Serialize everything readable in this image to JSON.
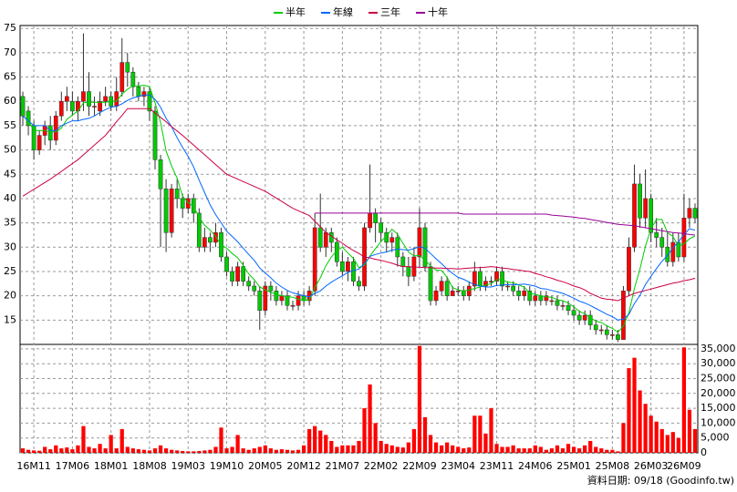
{
  "chart_data": {
    "type": "candlestick",
    "footer": "資料日期: 09/18 (Goodinfo.tw)",
    "legend": "top",
    "grid": true,
    "up_color": "#ff0000",
    "down_color": "#00cc00",
    "volume_color": "#ff0000",
    "ylim": [
      10,
      75.6
    ],
    "yticks": [
      15,
      20,
      25,
      30,
      35,
      40,
      45,
      50,
      55,
      60,
      65,
      70,
      75
    ],
    "y2lim": [
      0,
      36500
    ],
    "y2ticks": [
      0,
      {
        "value": 5000,
        "label": "5,000"
      },
      {
        "value": 10000,
        "label": "10,000"
      },
      {
        "value": 15000,
        "label": "15,000"
      },
      {
        "value": 20000,
        "label": "20,000"
      },
      {
        "value": 25000,
        "label": "25,000"
      },
      {
        "value": 30000,
        "label": "30,000"
      },
      {
        "value": 35000,
        "label": "35,000"
      }
    ],
    "categories": [
      null,
      null,
      "16M11",
      null,
      null,
      null,
      null,
      null,
      null,
      "17M06",
      null,
      null,
      null,
      null,
      null,
      null,
      "18M01",
      null,
      null,
      null,
      null,
      null,
      null,
      "18M08",
      null,
      null,
      null,
      null,
      null,
      null,
      "19M03",
      null,
      null,
      null,
      null,
      null,
      null,
      "19M10",
      null,
      null,
      null,
      null,
      null,
      null,
      "20M05",
      null,
      null,
      null,
      null,
      null,
      null,
      "20M12",
      null,
      null,
      null,
      null,
      null,
      null,
      "21M07",
      null,
      null,
      null,
      null,
      null,
      null,
      "22M02",
      null,
      null,
      null,
      null,
      null,
      null,
      "22M09",
      null,
      null,
      null,
      null,
      null,
      null,
      "23M04",
      null,
      null,
      null,
      null,
      null,
      null,
      "23M11",
      null,
      null,
      null,
      null,
      null,
      null,
      "24M06",
      null,
      null,
      null,
      null,
      null,
      null,
      "25M01",
      null,
      null,
      null,
      null,
      null,
      null,
      "25M08",
      null,
      null,
      null,
      null,
      null,
      null,
      "26M03",
      null,
      null,
      null,
      null,
      null,
      "26M09",
      null,
      null
    ],
    "open": [
      61,
      58,
      55,
      50,
      53,
      55,
      52,
      57,
      60,
      60,
      58,
      60,
      62,
      59,
      58,
      60,
      61,
      59,
      62,
      68,
      66,
      63,
      61,
      62,
      58,
      48,
      42,
      33,
      42,
      40,
      38,
      40,
      37,
      30,
      32,
      31,
      33,
      28,
      25,
      23,
      26,
      23,
      22,
      21,
      17,
      22,
      21,
      19,
      20,
      18,
      18,
      20,
      19,
      21,
      34,
      30,
      33,
      31,
      27,
      25,
      27,
      23,
      22,
      34,
      37,
      35,
      33,
      31,
      32,
      28,
      26,
      24,
      28,
      34,
      26,
      19,
      21,
      23,
      20,
      21,
      21,
      20,
      22,
      25,
      22,
      23,
      23,
      25,
      22,
      22,
      21,
      20,
      21,
      19,
      20,
      19,
      19,
      19,
      18,
      18,
      17,
      16,
      15,
      16,
      14,
      13,
      13,
      12,
      12,
      11,
      21,
      30,
      43,
      36,
      40,
      33,
      32,
      30,
      27,
      31,
      28,
      36,
      38
    ],
    "high": [
      62,
      59,
      56,
      54,
      56,
      57,
      58,
      62,
      63,
      62,
      61,
      74,
      66,
      61,
      62,
      63,
      62,
      65,
      73,
      70,
      67,
      64,
      63,
      63,
      59,
      49,
      44,
      43,
      44,
      41,
      41,
      41,
      38,
      34,
      33,
      35,
      34,
      29,
      26,
      27,
      27,
      24,
      23,
      22,
      23,
      23,
      22,
      21,
      21,
      19,
      21,
      21,
      22,
      37,
      41,
      34,
      34,
      32,
      29,
      28,
      28,
      24,
      35,
      47,
      38,
      36,
      34,
      33,
      33,
      29,
      28,
      30,
      38,
      35,
      27,
      22,
      24,
      24,
      22,
      22,
      22,
      23,
      27,
      26,
      24,
      24,
      26,
      26,
      23,
      23,
      22,
      22,
      22,
      21,
      21,
      21,
      20,
      20,
      19,
      19,
      18,
      17,
      17,
      17,
      15,
      14,
      14,
      13,
      13,
      22,
      32,
      47,
      45,
      46,
      41,
      36,
      34,
      33,
      33,
      33,
      41,
      40,
      39
    ],
    "low": [
      55,
      53,
      48,
      49,
      51,
      50,
      51,
      56,
      58,
      57,
      56,
      58,
      57,
      57,
      57,
      59,
      58,
      58,
      61,
      63,
      61,
      60,
      59,
      56,
      46,
      30,
      29,
      32,
      38,
      36,
      37,
      35,
      29,
      29,
      29,
      30,
      27,
      24,
      22,
      22,
      22,
      21,
      20,
      13,
      16,
      19,
      18,
      18,
      17,
      17,
      17,
      18,
      18,
      20,
      29,
      28,
      29,
      26,
      24,
      23,
      22,
      21,
      21,
      33,
      31,
      31,
      29,
      29,
      26,
      24,
      22,
      23,
      26,
      25,
      18,
      18,
      20,
      19,
      20,
      20,
      19,
      19,
      21,
      21,
      21,
      22,
      22,
      21,
      21,
      20,
      19,
      19,
      18,
      18,
      18,
      18,
      18,
      17,
      17,
      16,
      15,
      14,
      14,
      13,
      12,
      12,
      11,
      11,
      10.5,
      11,
      20,
      29,
      34,
      34,
      31,
      30,
      28,
      26,
      26,
      27,
      27,
      34,
      35
    ],
    "close": [
      57,
      55,
      50,
      53,
      55,
      52,
      57,
      60,
      61,
      58,
      60,
      62,
      59,
      59,
      60,
      61,
      59,
      62,
      68,
      66,
      63,
      61,
      62,
      58,
      48,
      42,
      33,
      42,
      40,
      38,
      40,
      37,
      30,
      32,
      31,
      33,
      28,
      25,
      23,
      26,
      23,
      22,
      21,
      17,
      22,
      21,
      19,
      20,
      18,
      18,
      20,
      19,
      21,
      34,
      30,
      33,
      31,
      27,
      25,
      27,
      23,
      22,
      34,
      37,
      35,
      33,
      31,
      32,
      28,
      26,
      24,
      28,
      34,
      26,
      19,
      21,
      23,
      20,
      21,
      21,
      20,
      22,
      25,
      22,
      23,
      23,
      25,
      22,
      22,
      21,
      20,
      21,
      19,
      20,
      19,
      20,
      19,
      18,
      18,
      17,
      16,
      15,
      16,
      14,
      13,
      13,
      12,
      12,
      11,
      21,
      30,
      43,
      36,
      40,
      33,
      32,
      30,
      27,
      31,
      28,
      36,
      38,
      36
    ],
    "volume": [
      1500,
      1000,
      800,
      700,
      2000,
      1200,
      2500,
      1500,
      1800,
      1200,
      2500,
      9000,
      2000,
      1500,
      3000,
      1500,
      6000,
      1500,
      8000,
      2000,
      1500,
      1200,
      1000,
      800,
      1500,
      2500,
      1500,
      1000,
      800,
      600,
      500,
      500,
      600,
      800,
      1000,
      2000,
      8500,
      1500,
      2000,
      6000,
      1500,
      1000,
      1500,
      2000,
      2500,
      1500,
      1000,
      1200,
      1000,
      800,
      1000,
      2500,
      8000,
      9000,
      7500,
      6000,
      4000,
      2000,
      2500,
      2500,
      2500,
      4000,
      15000,
      23000,
      10000,
      4000,
      3000,
      2500,
      2000,
      1800,
      3500,
      8000,
      36000,
      12000,
      6000,
      3500,
      2500,
      3500,
      2500,
      2000,
      1500,
      1800,
      12500,
      12500,
      6500,
      15000,
      3000,
      2000,
      2000,
      2500,
      1500,
      1500,
      1500,
      2500,
      2000,
      1000,
      1500,
      2500,
      1500,
      3000,
      2000,
      1500,
      2500,
      4000,
      2000,
      1500,
      1000,
      1000,
      500,
      10000,
      28500,
      32000,
      21000,
      16500,
      12500,
      10500,
      8000,
      6000,
      7000,
      5000,
      35500,
      14500,
      8000
    ],
    "series": [
      {
        "name": "半年",
        "color": "#00cc00",
        "values": [
          57,
          56,
          54,
          54,
          54,
          53.7,
          53.7,
          54.5,
          56.3,
          57.2,
          58,
          59.7,
          59.8,
          59.8,
          59.8,
          59.8,
          60,
          60,
          61.5,
          62.5,
          63.2,
          63.2,
          63.3,
          63,
          59.7,
          55.7,
          49.8,
          46.7,
          44.2,
          40.5,
          39.2,
          38.3,
          36.2,
          34.5,
          33.5,
          32.2,
          30.5,
          29.8,
          28.7,
          27.8,
          26.3,
          24.5,
          23.3,
          21.8,
          21.2,
          20.7,
          20.3,
          20,
          19.8,
          19.7,
          19.3,
          19,
          19.2,
          21.7,
          23.7,
          26.2,
          28,
          29.3,
          30,
          28.8,
          27.7,
          25.8,
          26.3,
          28.2,
          29.7,
          31.2,
          32.3,
          33.7,
          32.7,
          30.8,
          29,
          28.2,
          28.3,
          27.3,
          26.2,
          25.3,
          25.2,
          23.8,
          21.7,
          21.2,
          21,
          21.2,
          21.5,
          21.8,
          22.2,
          22.5,
          23.3,
          23.3,
          22.8,
          22.7,
          22.2,
          21.8,
          20.5,
          20.3,
          20,
          19.8,
          19.7,
          19.2,
          19,
          18.5,
          17.7,
          16.8,
          16.3,
          15.5,
          14.8,
          14.5,
          13.8,
          13.3,
          12.5,
          13.8,
          16.5,
          21.5,
          25.5,
          30.2,
          33.8,
          35.7,
          35.7,
          33,
          32.2,
          30.2,
          30.7,
          31.7,
          32.3
        ]
      },
      {
        "name": "年線",
        "color": "#0066ff",
        "values": [
          57,
          56,
          55,
          55,
          55,
          54,
          54,
          55,
          55.5,
          56,
          56,
          56.3,
          56.5,
          57,
          57.7,
          58.3,
          58.8,
          59,
          59.5,
          60.2,
          60.7,
          61,
          61.3,
          61.3,
          60.4,
          58.8,
          56.5,
          54.8,
          52.5,
          50.5,
          48.7,
          46.5,
          43.8,
          41.2,
          38.7,
          36.7,
          35,
          33.3,
          32.2,
          31.1,
          29.8,
          28.5,
          27.3,
          25.7,
          24.7,
          23.7,
          22.6,
          21.8,
          21.1,
          20.6,
          20.3,
          20,
          19.8,
          20.5,
          21,
          22,
          22.8,
          23.5,
          24.1,
          24.8,
          25.2,
          25.5,
          26.6,
          28.1,
          28.5,
          28.8,
          29,
          29.4,
          29.6,
          29.5,
          29.4,
          29.7,
          30.1,
          29.8,
          28.7,
          27.6,
          26.6,
          25.5,
          24.6,
          23.8,
          23.4,
          22.8,
          22.3,
          22,
          21.8,
          21.8,
          22.1,
          22.2,
          22.3,
          22.3,
          22.3,
          22.4,
          22.2,
          22,
          21.5,
          21.4,
          21.1,
          20.8,
          20.5,
          20,
          19.5,
          18.9,
          18.5,
          18,
          17.4,
          16.8,
          16.2,
          15.7,
          15,
          15.2,
          16.2,
          18.4,
          20.1,
          22.3,
          24,
          25.6,
          27.1,
          28.3,
          29.9,
          31.1,
          32.6,
          33.8,
          33.5
        ]
      },
      {
        "name": "三年",
        "color": "#cc0044",
        "values": [
          40.5,
          41.2,
          41.9,
          42.6,
          43.3,
          44,
          44.8,
          45.6,
          46.4,
          47.2,
          48,
          49,
          50,
          51,
          52,
          53,
          54.4,
          55.8,
          57.1,
          58.5,
          58.5,
          58.5,
          58.5,
          58.5,
          57.6,
          56.7,
          55.8,
          54.8,
          53.9,
          53,
          52,
          51,
          50,
          49,
          48,
          47,
          46,
          45,
          44.5,
          44,
          43.5,
          43,
          42.5,
          42,
          41.5,
          40.8,
          40.1,
          39.4,
          38.7,
          38,
          37.5,
          37,
          36.5,
          35.3,
          34.2,
          33,
          32.3,
          31.5,
          30.8,
          30,
          29.3,
          28.7,
          28,
          27.8,
          27.5,
          27.3,
          27,
          26.7,
          26.3,
          26,
          26,
          25.9,
          25.9,
          25.8,
          25.8,
          25.7,
          25.7,
          25.6,
          25.6,
          25.5,
          25.6,
          25.7,
          25.8,
          25.8,
          25.9,
          26,
          25.9,
          25.7,
          25.6,
          25.4,
          25.3,
          25.1,
          25,
          24.6,
          24.3,
          23.9,
          23.6,
          23.2,
          22.9,
          22.5,
          22,
          21.7,
          21.2,
          20.5,
          20,
          19.5,
          19.3,
          19.2,
          19,
          19.5,
          20,
          20.5,
          20.8,
          21.1,
          21.4,
          21.7,
          22,
          22.3,
          22.6,
          22.8,
          23.1,
          23.3,
          23.6
        ]
      },
      {
        "name": "十年",
        "color": "#990099",
        "values": [
          null,
          null,
          null,
          null,
          null,
          null,
          null,
          null,
          null,
          null,
          null,
          null,
          null,
          null,
          null,
          null,
          null,
          null,
          null,
          null,
          null,
          null,
          null,
          null,
          null,
          null,
          null,
          null,
          null,
          null,
          null,
          null,
          null,
          null,
          null,
          null,
          null,
          null,
          null,
          null,
          null,
          null,
          null,
          null,
          null,
          null,
          null,
          null,
          null,
          null,
          null,
          null,
          null,
          37,
          37,
          37,
          37,
          37,
          37,
          37,
          37,
          37,
          37,
          37,
          37,
          37,
          37,
          37,
          37,
          37,
          37,
          37,
          37,
          37,
          37,
          37,
          37,
          37,
          37,
          37,
          36.8,
          36.8,
          36.8,
          36.8,
          36.8,
          36.8,
          36.8,
          36.8,
          36.8,
          36.8,
          36.8,
          36.8,
          36.8,
          36.8,
          36.8,
          36.8,
          36.6,
          36.5,
          36.4,
          36.3,
          36.2,
          36,
          35.9,
          35.7,
          35.5,
          35.3,
          35.1,
          34.9,
          34.7,
          34.6,
          34.5,
          34.4,
          34.2,
          34,
          33.8,
          33.6,
          33.4,
          33.2,
          33,
          32.9,
          32.8,
          32.6,
          32.5
        ]
      }
    ]
  }
}
